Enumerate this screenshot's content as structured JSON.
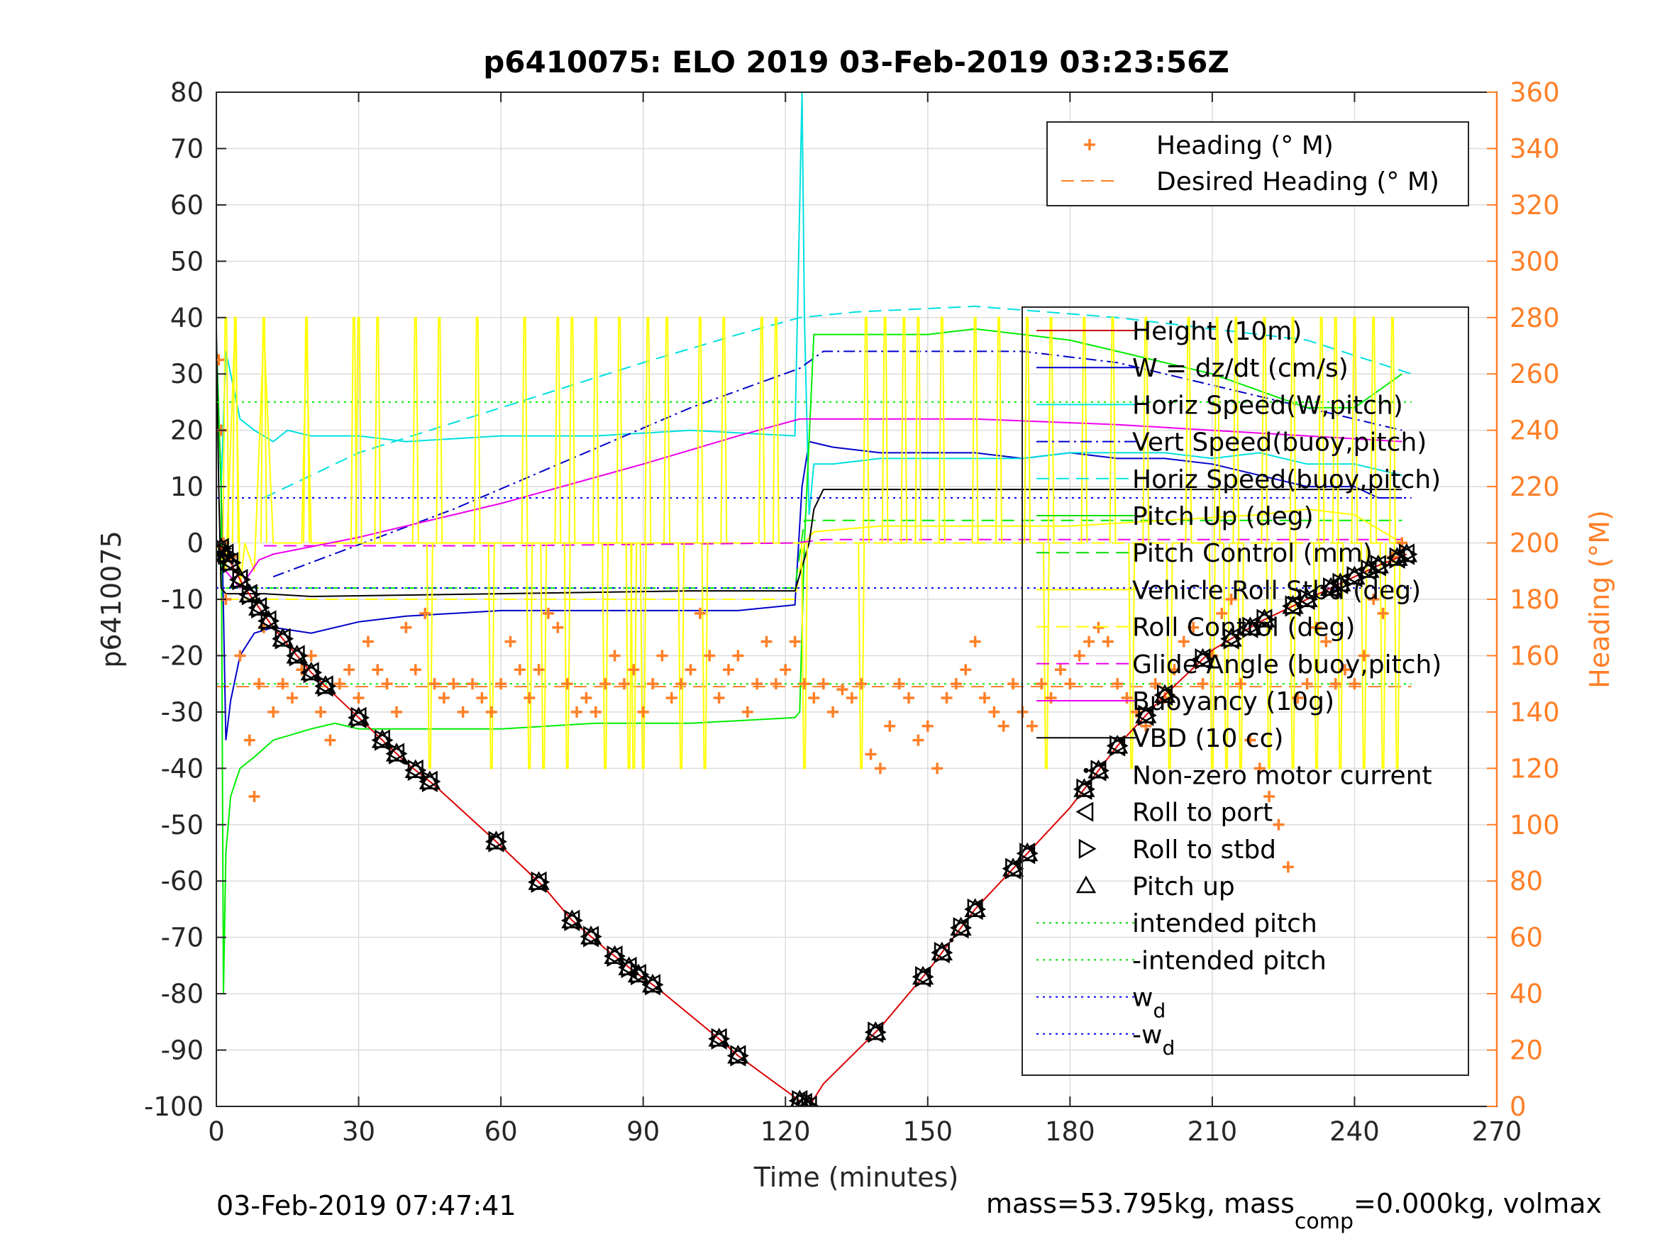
{
  "chart_data": {
    "type": "line",
    "title": "p6410075: ELO 2019 03-Feb-2019 03:23:56Z",
    "xlabel": "Time (minutes)",
    "ylabel_left": "p6410075",
    "ylabel_right": "Heading (°M)",
    "xlim": [
      0,
      270
    ],
    "ylim_left": [
      -100,
      80
    ],
    "ylim_right": [
      0,
      360
    ],
    "xticks": [
      0,
      30,
      60,
      90,
      120,
      150,
      180,
      210,
      240,
      270
    ],
    "yticks_left": [
      80,
      70,
      60,
      50,
      40,
      30,
      20,
      10,
      0,
      -10,
      -20,
      -30,
      -40,
      -50,
      -60,
      -70,
      -80,
      -90,
      -100
    ],
    "yticks_right": [
      360,
      340,
      320,
      300,
      280,
      260,
      240,
      220,
      200,
      180,
      160,
      140,
      120,
      100,
      80,
      60,
      40,
      20,
      0
    ],
    "grid": true,
    "footer_left": "03-Feb-2019 07:47:41",
    "footer_right": {
      "prefix": "mass=53.795kg, mass",
      "sub": "comp",
      "suffix": "=0.000kg, volmax"
    },
    "legend_heading": {
      "position": "top-right",
      "entries": [
        {
          "label": "Heading (° M)",
          "color": "#ff7f27",
          "style": "plus"
        },
        {
          "label": "Desired Heading (° M)",
          "color": "#ff7f27",
          "style": "dashed"
        }
      ]
    },
    "legend_main": {
      "position": "right",
      "entries": [
        {
          "label": "Height (10m)",
          "color": "#cc0000",
          "style": "solid"
        },
        {
          "label": "W = dz/dt (cm/s)",
          "color": "#0000cc",
          "style": "solid"
        },
        {
          "label": "Horiz Speed(W,pitch)",
          "color": "#00e5e5",
          "style": "solid"
        },
        {
          "label": "Vert Speed(buoy,pitch)",
          "color": "#0000cc",
          "style": "dashdot"
        },
        {
          "label": "Horiz Speed(buoy,pitch)",
          "color": "#00e5e5",
          "style": "dashed"
        },
        {
          "label": "Pitch Up (deg)",
          "color": "#00dd00",
          "style": "solid"
        },
        {
          "label": "Pitch Control (mm)",
          "color": "#00dd00",
          "style": "dashed"
        },
        {
          "label": "Vehicle Roll Stbd (deg)",
          "color": "#ffff00",
          "style": "solid"
        },
        {
          "label": "Roll Control (deg)",
          "color": "#ffff00",
          "style": "dashed"
        },
        {
          "label": "Glide Angle (buoy,pitch)",
          "color": "#ee00ee",
          "style": "dashed"
        },
        {
          "label": "Buoyancy (10g)",
          "color": "#ee00ee",
          "style": "solid"
        },
        {
          "label": "VBD (10 cc)",
          "color": "#000000",
          "style": "solid"
        },
        {
          "label": "Non-zero motor current",
          "color": "#000000",
          "style": "dot"
        },
        {
          "label": "Roll to port",
          "color": "#000000",
          "style": "tri-left"
        },
        {
          "label": "Roll to stbd",
          "color": "#000000",
          "style": "tri-right"
        },
        {
          "label": "Pitch up",
          "color": "#000000",
          "style": "tri-up"
        },
        {
          "label": "intended pitch",
          "color": "#00dd00",
          "style": "dotted"
        },
        {
          "label": "-intended pitch",
          "color": "#00dd00",
          "style": "dotted"
        },
        {
          "label": "w",
          "sub": "d",
          "color": "#0000ff",
          "style": "dotted"
        },
        {
          "label": "-w",
          "sub": "d",
          "color": "#0000ff",
          "style": "dotted"
        }
      ]
    },
    "series": [
      {
        "name": "Height (10m)",
        "color": "#dd0000",
        "x": [
          0,
          2,
          6,
          12,
          20,
          30,
          40,
          46,
          59,
          69,
          75,
          82,
          88,
          93,
          106,
          110,
          123,
          125,
          128,
          140,
          150,
          160,
          170,
          180,
          190,
          200,
          210,
          220,
          230,
          240,
          245,
          251
        ],
        "y": [
          0,
          -2,
          -8,
          -15,
          -23,
          -31,
          -39,
          -43,
          -53,
          -61,
          -67,
          -72,
          -76,
          -79,
          -88,
          -91,
          -99,
          -100,
          -96,
          -86,
          -76,
          -65,
          -56,
          -47,
          -36,
          -27,
          -19,
          -14,
          -10,
          -6,
          -4,
          -2
        ]
      },
      {
        "name": "W = dz/dt (cm/s)",
        "color": "#0000cc",
        "x": [
          0,
          1,
          2,
          3,
          5,
          8,
          12,
          20,
          30,
          40,
          60,
          80,
          100,
          110,
          122,
          123.5,
          125,
          130,
          140,
          150,
          160,
          170,
          180,
          190,
          200,
          210,
          220,
          230,
          240,
          245,
          250
        ],
        "y": [
          36,
          10,
          -35,
          -28,
          -20,
          -16,
          -15,
          -16,
          -14,
          -13,
          -12,
          -12,
          -12,
          -12,
          -11,
          10,
          18,
          17,
          16,
          16,
          16,
          15,
          16,
          15,
          15,
          14,
          12,
          10,
          10,
          8,
          8
        ]
      },
      {
        "name": "Horiz Speed(W,pitch)",
        "color": "#00e0e0",
        "x": [
          0,
          1,
          2,
          3,
          5,
          8,
          12,
          15,
          20,
          30,
          40,
          60,
          80,
          100,
          122,
          123.5,
          124,
          125,
          126,
          130,
          140,
          150,
          160,
          170,
          180,
          190,
          200,
          210,
          220,
          230,
          240,
          250
        ],
        "y": [
          36,
          10,
          34,
          30,
          22,
          20,
          18,
          20,
          19,
          19,
          18,
          19,
          19,
          20,
          19,
          80,
          40,
          5,
          14,
          14,
          15,
          15,
          15,
          15,
          16,
          16,
          16,
          15,
          16,
          14,
          14,
          12
        ]
      },
      {
        "name": "Vert Speed(buoy,pitch)",
        "color": "#0000cc",
        "dash": "16 6 3 6",
        "x": [
          12,
          50,
          100,
          123,
          128,
          150,
          170,
          190,
          210,
          230,
          250
        ],
        "y": [
          -6,
          6,
          24,
          31,
          34,
          34,
          34,
          32,
          28,
          24,
          20
        ]
      },
      {
        "name": "Horiz Speed(buoy,pitch)",
        "color": "#00e0e0",
        "dash": "18 10",
        "x": [
          10,
          30,
          60,
          90,
          110,
          123,
          135,
          160,
          190,
          210,
          230,
          252
        ],
        "y": [
          8,
          16,
          24,
          32,
          37,
          40,
          41,
          42,
          40,
          38,
          36,
          30
        ]
      },
      {
        "name": "Pitch Up (deg)",
        "color": "#00ee00",
        "x": [
          0,
          1,
          1.5,
          2,
          3,
          5,
          8,
          12,
          20,
          25,
          30,
          40,
          60,
          80,
          100,
          122,
          123,
          124,
          126,
          130,
          140,
          150,
          160,
          170,
          180,
          190,
          200,
          210,
          220,
          230,
          240,
          250
        ],
        "y": [
          36,
          10,
          -80,
          -55,
          -45,
          -40,
          -38,
          -35,
          -33,
          -32,
          -33,
          -33,
          -33,
          -32,
          -32,
          -31,
          -30,
          0,
          37,
          37,
          37,
          37,
          38,
          37,
          36,
          34,
          32,
          30,
          27,
          24,
          24,
          30
        ]
      },
      {
        "name": "Pitch Control (mm)",
        "color": "#00ee00",
        "dash": "18 10",
        "x": [
          2,
          20,
          60,
          100,
          122,
          124,
          160,
          200,
          250
        ],
        "y": [
          -8,
          -8,
          -8,
          -8,
          -8,
          4,
          4,
          4,
          4
        ]
      },
      {
        "name": "Vehicle Roll Stbd (deg)",
        "color": "#ffff00",
        "x": [
          0,
          2,
          4,
          5,
          6,
          8,
          10,
          12,
          15,
          18,
          19,
          20,
          25,
          30,
          60,
          90,
          122,
          124,
          126,
          140,
          150,
          160,
          170,
          180,
          200,
          220,
          230,
          240,
          250
        ],
        "y": [
          0,
          -5,
          40,
          -8,
          0,
          -5,
          38,
          0,
          0,
          0,
          38,
          0,
          0,
          0,
          0,
          0,
          0,
          0,
          2,
          3,
          3,
          3,
          3,
          3,
          4,
          5,
          6,
          5,
          0
        ]
      },
      {
        "name": "Roll Control (deg)",
        "color": "#ffff00",
        "dash": "18 10",
        "x": [
          2,
          60,
          122,
          124,
          250
        ],
        "y": [
          -10,
          -10,
          -10,
          0,
          0
        ]
      },
      {
        "name": "Glide Angle (buoy,pitch)",
        "color": "#ee00ee",
        "dash": "18 10",
        "x": [
          10,
          60,
          122,
          128,
          200,
          250
        ],
        "y": [
          -0.5,
          -0.5,
          0,
          0.6,
          0.6,
          0.6
        ]
      },
      {
        "name": "Buoyancy (10g)",
        "color": "#ee00ee",
        "x": [
          2,
          5,
          9,
          12,
          30,
          60,
          90,
          110,
          123,
          135,
          160,
          190,
          210,
          230,
          250
        ],
        "y": [
          -5,
          -8,
          -3,
          -2,
          1,
          7,
          14,
          19,
          22,
          22,
          22,
          21,
          20,
          19,
          18
        ]
      },
      {
        "name": "VBD (10 cc)",
        "color": "#000000",
        "x": [
          0,
          0.5,
          1,
          2,
          10,
          20,
          60,
          100,
          122,
          125,
          126,
          128,
          160,
          200,
          230,
          250
        ],
        "y": [
          38,
          10,
          -8,
          -9,
          -9,
          -9.5,
          -9,
          -8.5,
          -8.5,
          0,
          6,
          9.5,
          9.5,
          9.5,
          9.5,
          9.5
        ]
      },
      {
        "name": "intended pitch",
        "color": "#00ee00",
        "dash": "3 6",
        "x": [
          0,
          252
        ],
        "y": [
          25,
          25
        ]
      },
      {
        "name": "-intended pitch",
        "color": "#00ee00",
        "dash": "3 6",
        "x": [
          0,
          252
        ],
        "y": [
          -25,
          -25
        ]
      },
      {
        "name": "w_d",
        "color": "#0000ff",
        "dash": "3 6",
        "x": [
          0,
          252
        ],
        "y": [
          8,
          8
        ]
      },
      {
        "name": "-w_d",
        "color": "#0000ff",
        "dash": "3 6",
        "x": [
          0,
          252
        ],
        "y": [
          -8,
          -8
        ]
      }
    ],
    "roll_spikes": {
      "series": "Vehicle Roll Stbd (deg)",
      "up": [
        2,
        4,
        10,
        19,
        29,
        30,
        34,
        42,
        47,
        55,
        65,
        72,
        75,
        80,
        85,
        91,
        95,
        102,
        107,
        115,
        118,
        137,
        141,
        145,
        148,
        153,
        160,
        165,
        171,
        176,
        183,
        189,
        196,
        205,
        211,
        215,
        221,
        227,
        233,
        236,
        240,
        244,
        248
      ],
      "down": [
        45,
        58,
        66,
        69,
        74,
        82,
        87,
        88,
        90,
        98,
        103,
        124,
        136,
        175,
        193,
        201,
        210,
        213,
        216,
        222,
        227,
        232,
        237,
        242,
        246,
        249
      ]
    },
    "desired_heading": {
      "x": [
        0,
        252
      ],
      "y": [
        149,
        149
      ]
    },
    "heading": {
      "x": [
        0.5,
        1.0,
        1.5,
        2.0,
        3,
        5,
        7,
        8,
        9,
        10,
        12,
        14,
        16,
        18,
        20,
        22,
        24,
        26,
        28,
        30,
        32,
        34,
        36,
        38,
        40,
        42,
        44,
        46,
        48,
        50,
        52,
        54,
        56,
        58,
        60,
        62,
        64,
        66,
        68,
        70,
        72,
        74,
        76,
        78,
        80,
        82,
        84,
        86,
        88,
        90,
        92,
        94,
        96,
        98,
        100,
        102,
        104,
        106,
        108,
        110,
        112,
        114,
        116,
        118,
        120,
        122,
        124,
        126,
        128,
        130,
        132,
        134,
        136,
        138,
        140,
        142,
        144,
        146,
        148,
        150,
        152,
        154,
        156,
        158,
        160,
        162,
        164,
        166,
        168,
        170,
        172,
        174,
        176,
        178,
        180,
        182,
        184,
        186,
        188,
        190,
        192,
        194,
        196,
        198,
        200,
        202,
        204,
        206,
        208,
        210,
        212,
        214,
        216,
        218,
        220,
        222,
        224,
        226,
        228,
        230,
        232,
        234,
        236,
        238,
        240,
        242,
        244,
        246,
        248,
        250
      ],
      "y": [
        265,
        240,
        200,
        180,
        195,
        160,
        130,
        110,
        150,
        170,
        140,
        150,
        145,
        155,
        160,
        140,
        130,
        150,
        155,
        145,
        165,
        155,
        150,
        140,
        170,
        155,
        175,
        150,
        145,
        150,
        140,
        150,
        145,
        140,
        150,
        165,
        155,
        145,
        155,
        175,
        170,
        150,
        140,
        145,
        140,
        150,
        160,
        150,
        155,
        140,
        150,
        160,
        145,
        150,
        155,
        175,
        160,
        145,
        155,
        160,
        140,
        150,
        165,
        150,
        155,
        165,
        150,
        145,
        150,
        140,
        148,
        145,
        150,
        125,
        120,
        135,
        150,
        145,
        130,
        135,
        120,
        145,
        150,
        155,
        165,
        145,
        140,
        135,
        150,
        140,
        135,
        150,
        145,
        155,
        150,
        160,
        165,
        170,
        165,
        150,
        145,
        140,
        135,
        150,
        145,
        155,
        165,
        170,
        150,
        160,
        175,
        180,
        150,
        130,
        120,
        110,
        100,
        85,
        145,
        150,
        170,
        165,
        150,
        155,
        150,
        160,
        180,
        175,
        195,
        200
      ]
    },
    "markers": {
      "x": [
        1,
        2,
        3,
        5,
        7,
        9,
        11,
        14,
        17,
        20,
        23,
        30,
        35,
        38,
        42,
        45,
        59,
        68,
        75,
        79,
        84,
        87,
        89,
        92,
        106,
        110,
        123,
        124,
        125,
        139,
        149,
        153,
        157,
        160,
        168,
        171,
        183,
        186,
        190,
        196,
        200,
        208,
        214,
        218,
        221,
        227,
        230,
        235,
        237,
        240,
        243,
        245,
        249,
        251
      ]
    },
    "motor_current_dots": {
      "x": [
        1.5,
        2.5,
        4,
        6,
        8,
        10,
        12,
        18,
        21,
        24,
        31,
        36,
        40,
        44,
        58,
        69,
        76,
        80,
        85,
        90,
        93,
        107,
        111,
        124,
        140,
        150,
        155,
        158,
        161,
        169,
        172,
        184,
        187,
        191,
        197,
        201,
        209,
        215,
        219,
        222,
        228,
        231,
        236,
        238,
        241,
        244,
        246,
        250
      ]
    }
  }
}
